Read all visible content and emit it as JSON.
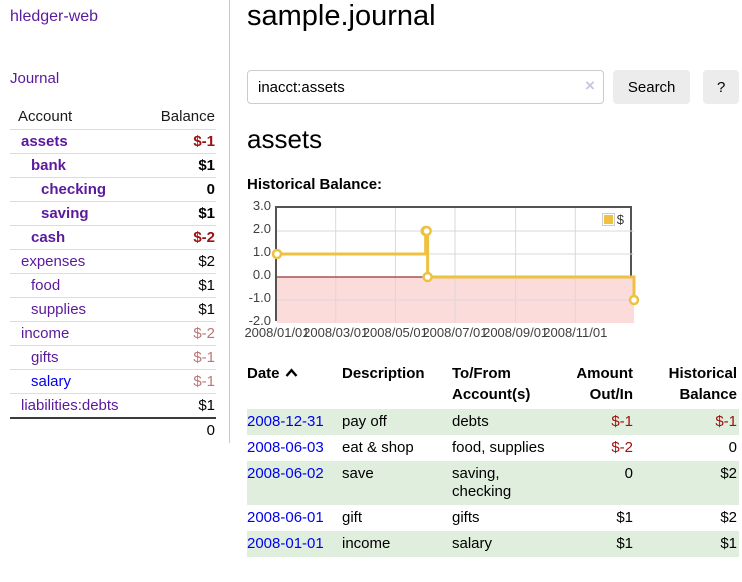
{
  "app": {
    "title": "hledger-web"
  },
  "nav": {
    "journal": "Journal"
  },
  "sidebar": {
    "headers": {
      "account": "Account",
      "balance": "Balance"
    },
    "accounts": [
      {
        "name": "assets",
        "balance": "$-1"
      },
      {
        "name": "bank",
        "balance": "$1"
      },
      {
        "name": "checking",
        "balance": "0"
      },
      {
        "name": "saving",
        "balance": "$1"
      },
      {
        "name": "cash",
        "balance": "$-2"
      },
      {
        "name": "expenses",
        "balance": "$2"
      },
      {
        "name": "food",
        "balance": "$1"
      },
      {
        "name": "supplies",
        "balance": "$1"
      },
      {
        "name": "income",
        "balance": "$-2"
      },
      {
        "name": "gifts",
        "balance": "$-1"
      },
      {
        "name": "salary",
        "balance": "$-1"
      },
      {
        "name": "liabilities:debts",
        "balance": "$1"
      }
    ],
    "total": "0"
  },
  "main": {
    "title": "sample.journal",
    "account_heading": "assets",
    "chart_label": "Historical Balance:"
  },
  "search": {
    "value": "inacct:assets",
    "clear": "×",
    "button": "Search",
    "help": "?"
  },
  "register": {
    "headers": {
      "date": "Date",
      "description": "Description",
      "account": "To/From Account(s)",
      "amount": "Amount Out/In",
      "balance": "Historical Balance"
    },
    "rows": [
      {
        "date": "2008-12-31",
        "description": "pay off",
        "accounts": "debts",
        "amount": "$-1",
        "balance": "$-1"
      },
      {
        "date": "2008-06-03",
        "description": "eat & shop",
        "accounts": "food, supplies",
        "amount": "$-2",
        "balance": "0"
      },
      {
        "date": "2008-06-02",
        "description": "save",
        "accounts": "saving, checking",
        "amount": "0",
        "balance": "$2"
      },
      {
        "date": "2008-06-01",
        "description": "gift",
        "accounts": "gifts",
        "amount": "$1",
        "balance": "$2"
      },
      {
        "date": "2008-01-01",
        "description": "income",
        "accounts": "salary",
        "amount": "$1",
        "balance": "$1"
      }
    ]
  },
  "colors": {
    "link_purple": "#5b1a9b",
    "link_blue": "#0000ee",
    "negative": "#a01010",
    "negative_muted": "#bc7676",
    "row_stripe_green": "#dfeedd",
    "chart_line": "#edc240",
    "chart_negative_bg": "#fcdbdb",
    "chart_zero_line": "#993333",
    "chart_border": "#545454",
    "gridline": "#d9d9d9"
  },
  "chart_data": {
    "type": "line",
    "title": "Historical Balance:",
    "legend_label": "$",
    "legend_position": "top-right",
    "grid": true,
    "x_range": [
      "2008-01-01",
      "2008-12-31"
    ],
    "ylim": [
      -2,
      3
    ],
    "y_ticks": [
      3.0,
      2.0,
      1.0,
      0.0,
      -1.0,
      -2.0
    ],
    "y_tick_labels": [
      "3.0",
      "2.0",
      "1.0",
      "0.0",
      "-1.0",
      "-2.0"
    ],
    "x_tick_labels": [
      "2008/01/01",
      "2008/03/01",
      "2008/05/01",
      "2008/07/01",
      "2008/09/01",
      "2008/11/01"
    ],
    "series": [
      {
        "name": "$",
        "color": "#edc240",
        "step": true,
        "points": [
          [
            "2008-01-01",
            1
          ],
          [
            "2008-06-01",
            2
          ],
          [
            "2008-06-02",
            2
          ],
          [
            "2008-06-03",
            0
          ],
          [
            "2008-12-31",
            -1
          ]
        ]
      }
    ],
    "negative_region_color": "#fcdbdb",
    "zero_line_color": "#993333"
  }
}
